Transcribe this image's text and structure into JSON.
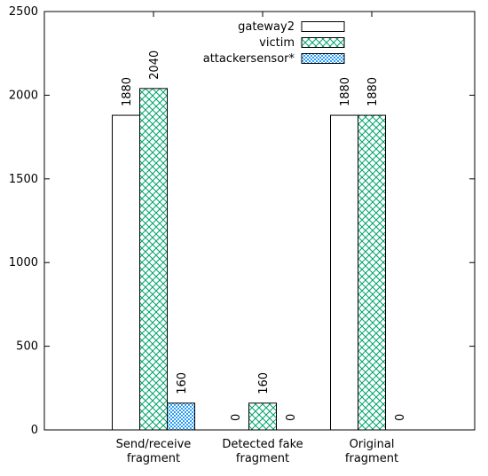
{
  "chart_data": {
    "type": "bar",
    "categories": [
      [
        "Send/receive",
        "fragment"
      ],
      [
        "Detected fake",
        "fragment"
      ],
      [
        "Original",
        "fragment"
      ]
    ],
    "series": [
      {
        "name": "gateway2",
        "values": [
          1880,
          0,
          1880
        ],
        "style": "white",
        "colors": {
          "fill": "#ffffff",
          "stroke": "#000000"
        }
      },
      {
        "name": "victim",
        "values": [
          2040,
          160,
          1880
        ],
        "style": "crosshatch",
        "colors": {
          "fill": "#ffffff",
          "pattern": "#00a36c",
          "stroke": "#000000"
        }
      },
      {
        "name": "attackersensor*",
        "values": [
          160,
          0,
          0
        ],
        "style": "dots",
        "colors": {
          "fill": "#ffffff",
          "pattern": "#2a9df4",
          "stroke": "#000000"
        }
      }
    ],
    "ylim": [
      0,
      2500
    ],
    "yticks": [
      0,
      500,
      1000,
      1500,
      2000,
      2500
    ],
    "title": "",
    "xlabel": "",
    "ylabel": "",
    "legend": {
      "position": "top-right",
      "labels": [
        "gateway2",
        "victim",
        "attackersensor*"
      ]
    },
    "grid": false
  }
}
